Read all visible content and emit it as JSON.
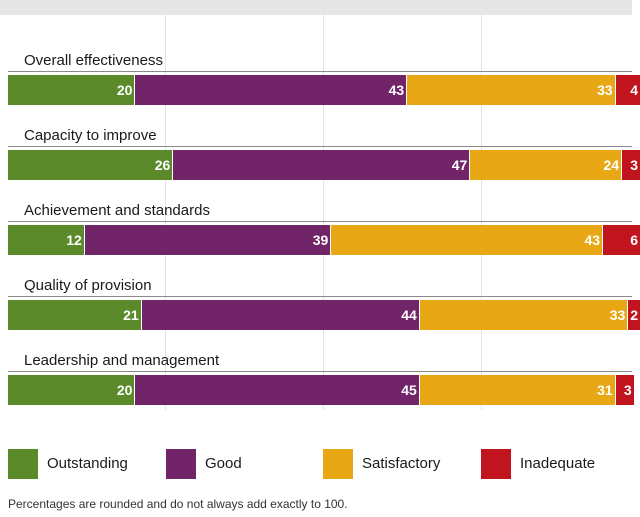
{
  "chart_data": {
    "type": "bar",
    "orientation": "horizontal",
    "stacked": true,
    "categories": [
      "Overall effectiveness",
      "Capacity to improve",
      "Achievement and standards",
      "Quality of provision",
      "Leadership and management"
    ],
    "series": [
      {
        "name": "Outstanding",
        "color": "#5a8a2a",
        "values": [
          20,
          26,
          12,
          21,
          20
        ]
      },
      {
        "name": "Good",
        "color": "#722468",
        "values": [
          43,
          47,
          39,
          44,
          45
        ]
      },
      {
        "name": "Satisfactory",
        "color": "#e8a816",
        "values": [
          33,
          24,
          43,
          33,
          31
        ]
      },
      {
        "name": "Inadequate",
        "color": "#c0141e",
        "values": [
          4,
          3,
          6,
          2,
          3
        ]
      }
    ],
    "xlim": [
      0,
      100
    ],
    "grid": true,
    "legend_position": "bottom",
    "footnote": "Percentages are rounded and do not always add exactly to 100."
  }
}
